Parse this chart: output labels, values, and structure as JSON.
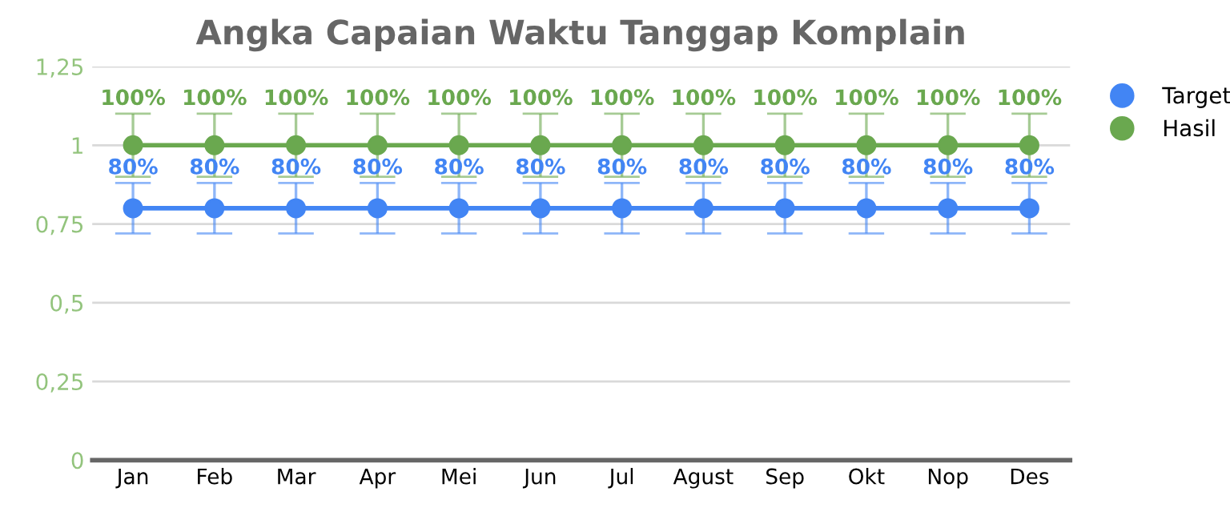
{
  "chart_data": {
    "type": "line",
    "title": "Angka Capaian Waktu Tanggap Komplain",
    "categories": [
      "Jan",
      "Feb",
      "Mar",
      "Apr",
      "Mei",
      "Jun",
      "Jul",
      "Agust",
      "Sep",
      "Okt",
      "Nop",
      "Des"
    ],
    "series": [
      {
        "name": "Target",
        "color": "#4285f4",
        "values": [
          0.8,
          0.8,
          0.8,
          0.8,
          0.8,
          0.8,
          0.8,
          0.8,
          0.8,
          0.8,
          0.8,
          0.8
        ],
        "errors": [
          0.08,
          0.08,
          0.08,
          0.08,
          0.08,
          0.08,
          0.08,
          0.08,
          0.08,
          0.08,
          0.08,
          0.08
        ],
        "value_labels": [
          "80%",
          "80%",
          "80%",
          "80%",
          "80%",
          "80%",
          "80%",
          "80%",
          "80%",
          "80%",
          "80%",
          "80%"
        ]
      },
      {
        "name": "Hasil",
        "color": "#6aa84f",
        "values": [
          1,
          1,
          1,
          1,
          1,
          1,
          1,
          1,
          1,
          1,
          1,
          1
        ],
        "errors": [
          0.1,
          0.1,
          0.1,
          0.1,
          0.1,
          0.1,
          0.1,
          0.1,
          0.1,
          0.1,
          0.1,
          0.1
        ],
        "value_labels": [
          "100%",
          "100%",
          "100%",
          "100%",
          "100%",
          "100%",
          "100%",
          "100%",
          "100%",
          "100%",
          "100%",
          "100%"
        ]
      }
    ],
    "ylim": [
      0,
      1.25
    ],
    "yticks": [
      0,
      {
        "value": 0.25,
        "label": "0,25"
      },
      {
        "value": 0.5,
        "label": "0,5"
      },
      {
        "value": 0.75,
        "label": "0,75"
      },
      1,
      {
        "value": 1.25,
        "label": "1,25"
      }
    ],
    "grid": "y",
    "legend": "right",
    "marker": "circle",
    "line_style": "solid"
  }
}
